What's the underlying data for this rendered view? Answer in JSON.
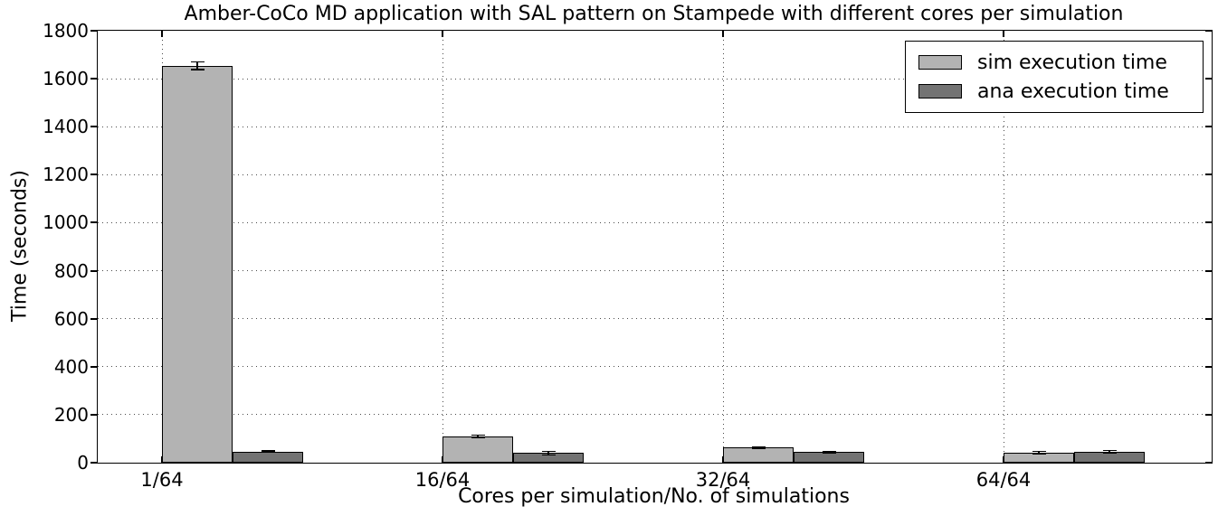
{
  "chart_data": {
    "type": "bar",
    "title": "Amber-CoCo MD application with SAL pattern on Stampede with different cores per simulation",
    "xlabel": "Cores per simulation/No. of simulations",
    "ylabel": "Time (seconds)",
    "categories": [
      "1/64",
      "16/64",
      "32/64",
      "64/64"
    ],
    "series": [
      {
        "name": "sim execution time",
        "color": "#b3b3b3",
        "values": [
          1655,
          109,
          63,
          42
        ],
        "errors": [
          16,
          6,
          2,
          5
        ]
      },
      {
        "name": "ana execution time",
        "color": "#737373",
        "values": [
          47,
          40,
          44,
          46
        ],
        "errors": [
          2,
          8,
          3,
          5
        ]
      }
    ],
    "ylim": [
      0,
      1800
    ],
    "yticks": [
      0,
      200,
      400,
      600,
      800,
      1000,
      1200,
      1400,
      1600,
      1800
    ],
    "grid": "dotted",
    "legend_position": "upper right",
    "bar_edge_color": "#000000",
    "error_bar_color": "#000000",
    "background_color": "#ffffff"
  }
}
